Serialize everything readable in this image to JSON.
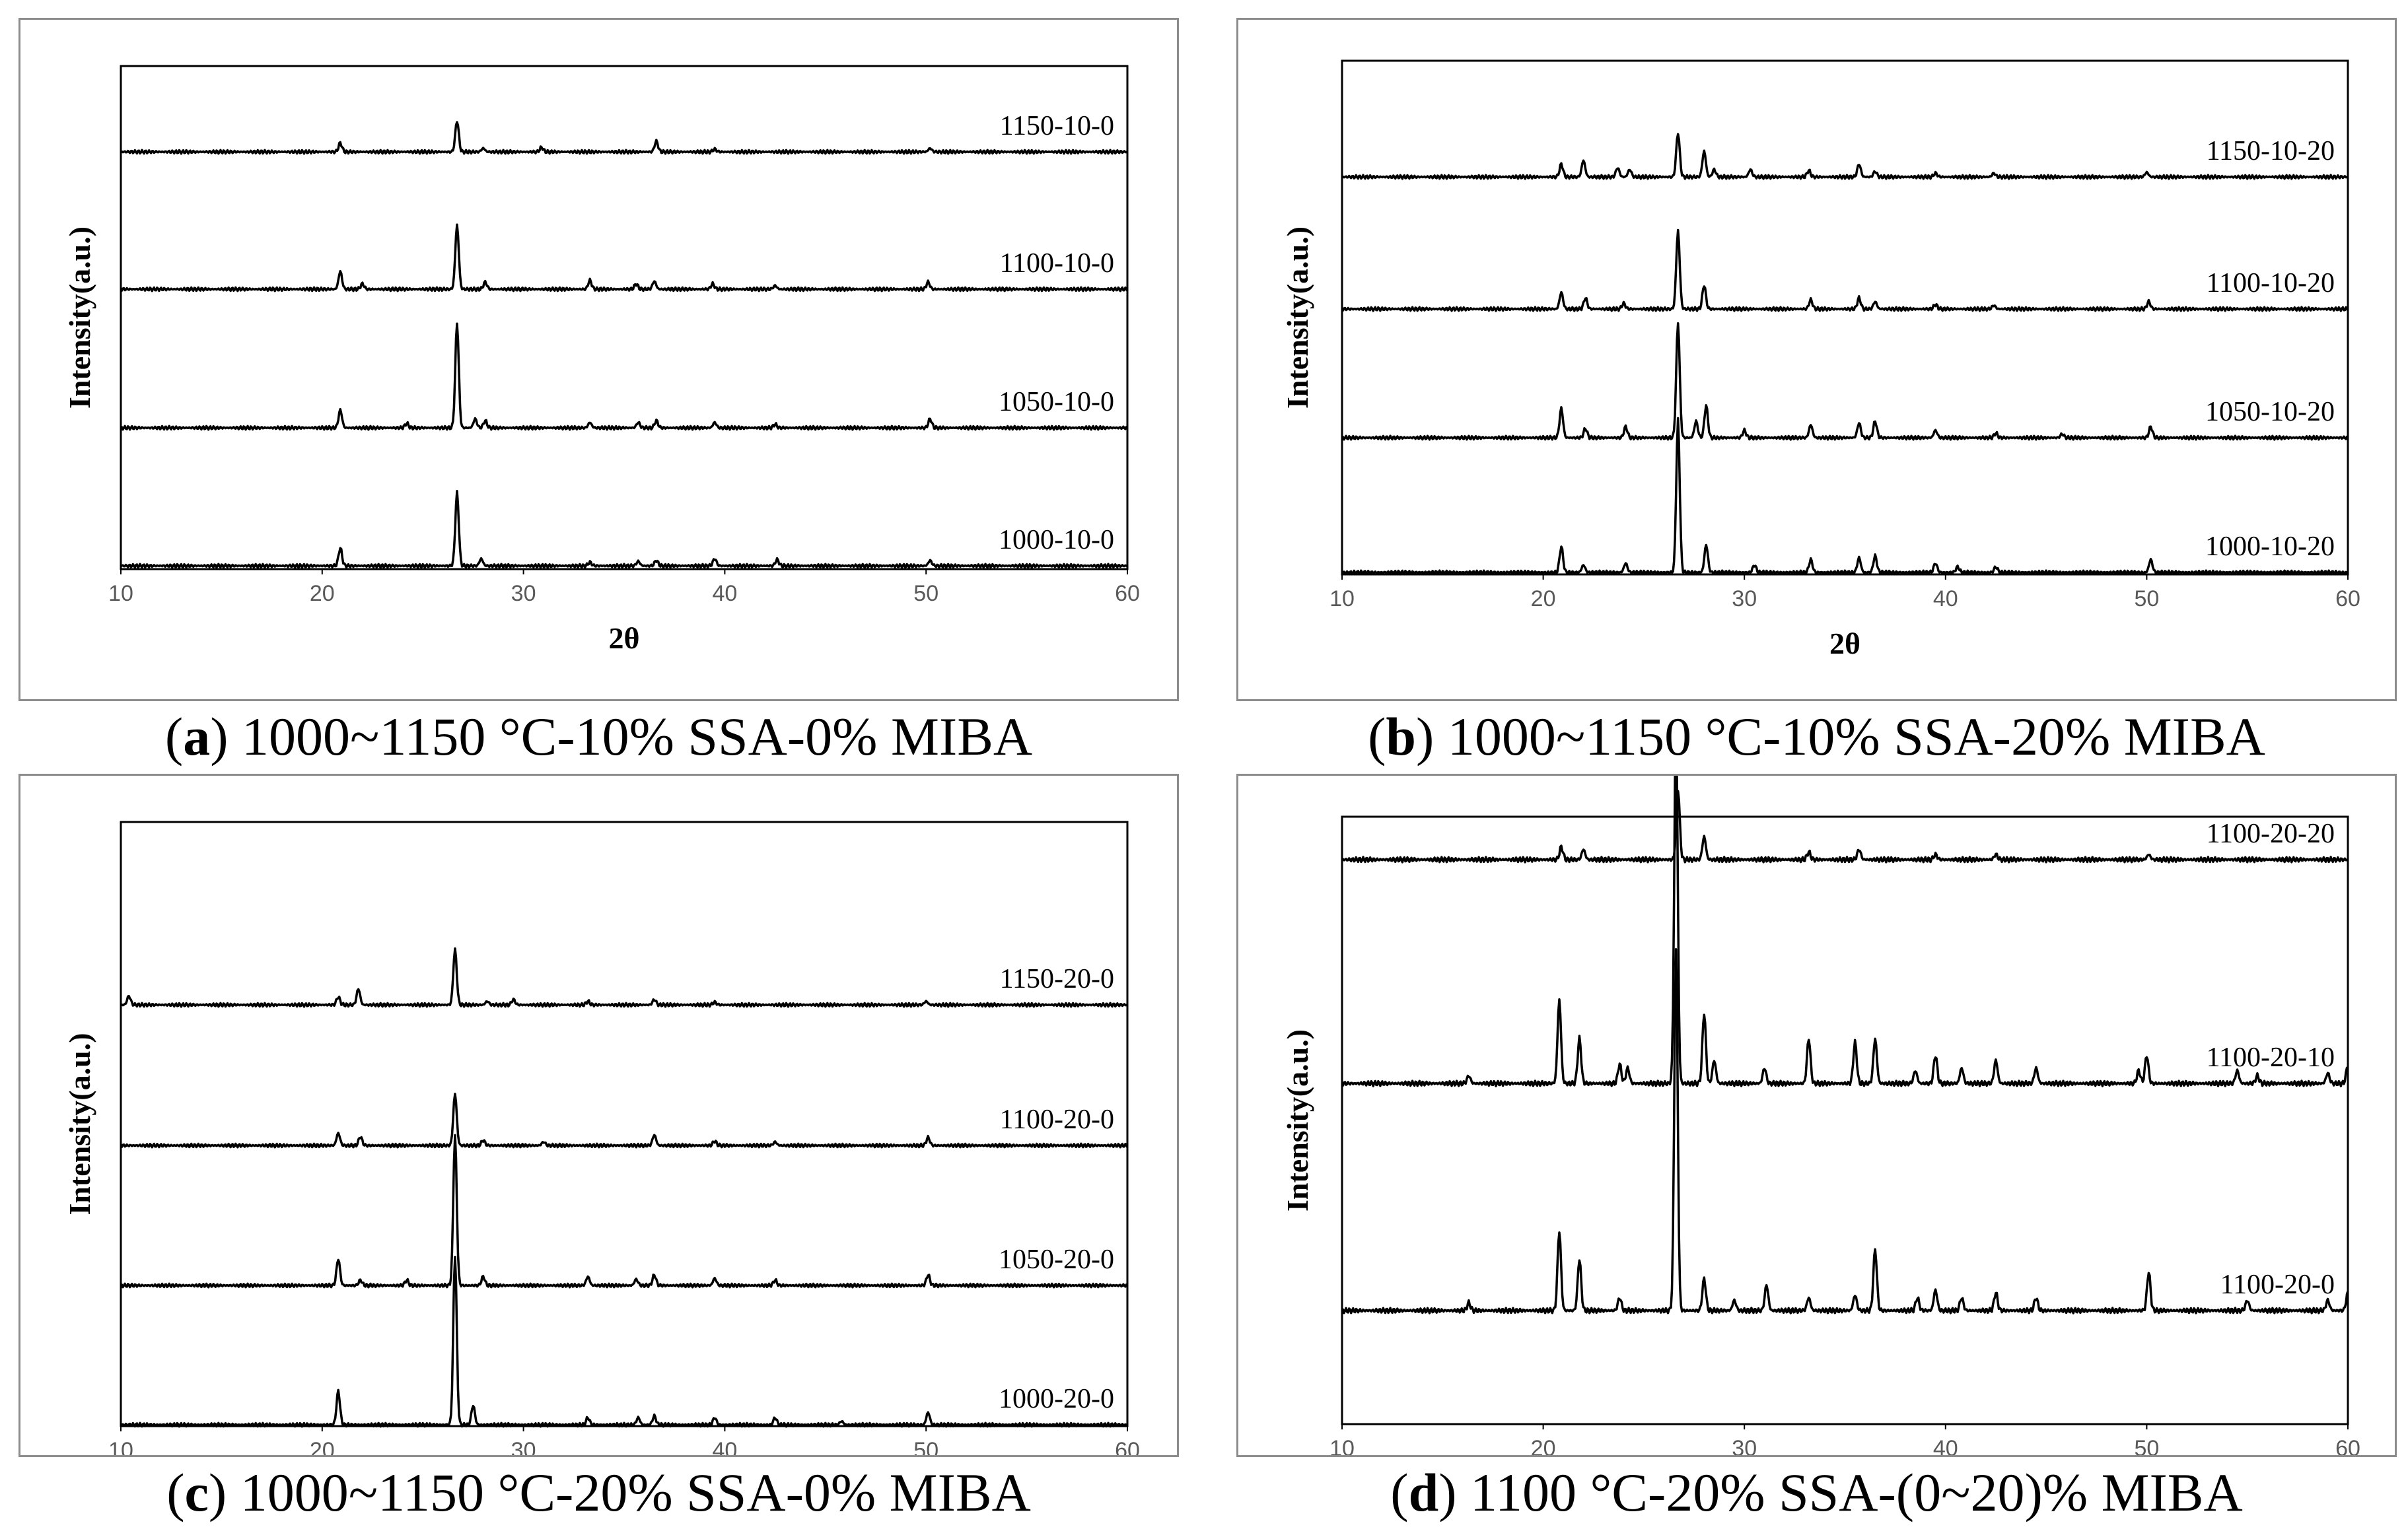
{
  "chart_data": [
    {
      "type": "line",
      "panel_letter": "a",
      "caption_rest": " 1000~1150 °C-10% SSA-0% MIBA",
      "xlabel": "2θ",
      "ylabel": "Intensity(a.u.)",
      "xlim": [
        10,
        60
      ],
      "xticks": [
        10,
        20,
        30,
        40,
        50,
        60
      ],
      "series": [
        {
          "name": "1150-10-0",
          "peaks": [
            [
              20.9,
              10
            ],
            [
              26.7,
              35
            ],
            [
              28.0,
              4
            ],
            [
              30.9,
              5
            ],
            [
              36.6,
              12
            ],
            [
              39.5,
              3
            ],
            [
              50.2,
              4
            ]
          ]
        },
        {
          "name": "1100-10-0",
          "peaks": [
            [
              20.9,
              20
            ],
            [
              22.0,
              6
            ],
            [
              26.7,
              72
            ],
            [
              28.1,
              8
            ],
            [
              33.3,
              10
            ],
            [
              35.6,
              6
            ],
            [
              36.5,
              9
            ],
            [
              39.4,
              6
            ],
            [
              42.5,
              4
            ],
            [
              50.1,
              8
            ]
          ]
        },
        {
          "name": "1050-10-0",
          "peaks": [
            [
              20.9,
              20
            ],
            [
              24.2,
              5
            ],
            [
              26.7,
              118
            ],
            [
              27.6,
              10
            ],
            [
              28.1,
              8
            ],
            [
              33.3,
              6
            ],
            [
              35.7,
              6
            ],
            [
              36.6,
              8
            ],
            [
              39.5,
              6
            ],
            [
              42.5,
              4
            ],
            [
              50.2,
              10
            ]
          ]
        },
        {
          "name": "1000-10-0",
          "peaks": [
            [
              20.9,
              20
            ],
            [
              26.7,
              82
            ],
            [
              27.9,
              8
            ],
            [
              33.3,
              4
            ],
            [
              35.7,
              5
            ],
            [
              36.6,
              6
            ],
            [
              39.5,
              8
            ],
            [
              42.6,
              7
            ],
            [
              50.2,
              6
            ]
          ]
        }
      ]
    },
    {
      "type": "line",
      "panel_letter": "b",
      "caption_rest": " 1000~1150 °C-10% SSA-20% MIBA",
      "xlabel": "2θ",
      "ylabel": "Intensity(a.u.)",
      "xlim": [
        10,
        60
      ],
      "xticks": [
        10,
        20,
        30,
        40,
        50,
        60
      ],
      "series": [
        {
          "name": "1150-10-20",
          "peaks": [
            [
              20.9,
              14
            ],
            [
              22.0,
              18
            ],
            [
              23.7,
              10
            ],
            [
              24.3,
              8
            ],
            [
              26.7,
              48
            ],
            [
              28.0,
              28
            ],
            [
              28.5,
              8
            ],
            [
              30.3,
              8
            ],
            [
              33.2,
              7
            ],
            [
              35.7,
              14
            ],
            [
              36.5,
              6
            ],
            [
              39.5,
              4
            ],
            [
              42.4,
              4
            ],
            [
              50.0,
              5
            ]
          ]
        },
        {
          "name": "1100-10-20",
          "peaks": [
            [
              20.9,
              18
            ],
            [
              22.1,
              12
            ],
            [
              24.0,
              6
            ],
            [
              26.7,
              85
            ],
            [
              28.0,
              26
            ],
            [
              33.3,
              10
            ],
            [
              35.7,
              12
            ],
            [
              36.5,
              8
            ],
            [
              39.5,
              5
            ],
            [
              42.4,
              4
            ],
            [
              50.1,
              8
            ]
          ]
        },
        {
          "name": "1050-10-20",
          "peaks": [
            [
              20.9,
              32
            ],
            [
              22.1,
              10
            ],
            [
              24.1,
              12
            ],
            [
              26.7,
              125
            ],
            [
              27.6,
              18
            ],
            [
              28.1,
              35
            ],
            [
              30.0,
              8
            ],
            [
              33.3,
              14
            ],
            [
              35.7,
              16
            ],
            [
              36.5,
              18
            ],
            [
              39.5,
              8
            ],
            [
              42.5,
              5
            ],
            [
              45.8,
              4
            ],
            [
              50.2,
              12
            ]
          ]
        },
        {
          "name": "1000-10-20",
          "peaks": [
            [
              20.9,
              28
            ],
            [
              22.0,
              8
            ],
            [
              24.1,
              10
            ],
            [
              26.7,
              165
            ],
            [
              28.1,
              30
            ],
            [
              30.5,
              8
            ],
            [
              33.3,
              14
            ],
            [
              35.7,
              16
            ],
            [
              36.5,
              18
            ],
            [
              39.5,
              10
            ],
            [
              40.6,
              6
            ],
            [
              42.5,
              6
            ],
            [
              50.2,
              14
            ]
          ]
        }
      ]
    },
    {
      "type": "line",
      "panel_letter": "c",
      "caption_rest": " 1000~1150 °C-20% SSA-0% MIBA",
      "xlabel": "2θ",
      "ylabel": "Intensity(a.u.)",
      "xlim": [
        10,
        60
      ],
      "xticks": [
        10,
        20,
        30,
        40,
        50,
        60
      ],
      "series": [
        {
          "name": "1150-20-0",
          "peaks": [
            [
              10.4,
              10
            ],
            [
              20.8,
              9
            ],
            [
              21.8,
              18
            ],
            [
              26.6,
              62
            ],
            [
              28.2,
              4
            ],
            [
              29.5,
              6
            ],
            [
              33.2,
              4
            ],
            [
              36.5,
              6
            ],
            [
              39.5,
              3
            ],
            [
              50.0,
              4
            ]
          ]
        },
        {
          "name": "1100-20-0",
          "peaks": [
            [
              20.8,
              14
            ],
            [
              21.9,
              10
            ],
            [
              26.6,
              58
            ],
            [
              28.0,
              6
            ],
            [
              31.0,
              4
            ],
            [
              36.5,
              12
            ],
            [
              39.5,
              5
            ],
            [
              42.5,
              4
            ],
            [
              50.1,
              9
            ]
          ]
        },
        {
          "name": "1050-20-0",
          "peaks": [
            [
              20.8,
              30
            ],
            [
              21.9,
              6
            ],
            [
              24.2,
              6
            ],
            [
              26.6,
              168
            ],
            [
              28.0,
              10
            ],
            [
              33.2,
              10
            ],
            [
              35.6,
              7
            ],
            [
              36.5,
              12
            ],
            [
              39.5,
              8
            ],
            [
              42.5,
              6
            ],
            [
              50.1,
              12
            ]
          ]
        },
        {
          "name": "1000-20-0",
          "peaks": [
            [
              20.8,
              38
            ],
            [
              26.6,
              190
            ],
            [
              27.5,
              22
            ],
            [
              33.2,
              8
            ],
            [
              35.7,
              8
            ],
            [
              36.5,
              10
            ],
            [
              39.5,
              8
            ],
            [
              42.5,
              8
            ],
            [
              45.8,
              4
            ],
            [
              50.1,
              14
            ]
          ]
        }
      ]
    },
    {
      "type": "line",
      "panel_letter": "d",
      "caption_rest": " 1100 °C-20% SSA-(0~20)% MIBA",
      "xlabel": "2θ",
      "ylabel": "Intensity(a.u.)",
      "xlim": [
        10,
        60
      ],
      "xticks": [
        10,
        20,
        30,
        40,
        50,
        60
      ],
      "series": [
        {
          "name": "1100-20-20",
          "peaks": [
            [
              20.9,
              10
            ],
            [
              22.0,
              8
            ],
            [
              26.7,
              55
            ],
            [
              28.0,
              18
            ],
            [
              33.2,
              6
            ],
            [
              35.7,
              8
            ],
            [
              39.5,
              4
            ],
            [
              42.5,
              4
            ],
            [
              50.1,
              4
            ]
          ]
        },
        {
          "name": "1100-20-10",
          "peaks": [
            [
              16.3,
              6
            ],
            [
              20.8,
              65
            ],
            [
              21.8,
              35
            ],
            [
              23.8,
              15
            ],
            [
              24.2,
              12
            ],
            [
              26.6,
              280
            ],
            [
              28.0,
              55
            ],
            [
              28.5,
              18
            ],
            [
              31.0,
              12
            ],
            [
              33.2,
              35
            ],
            [
              35.5,
              32
            ],
            [
              36.5,
              35
            ],
            [
              38.5,
              10
            ],
            [
              39.5,
              22
            ],
            [
              40.8,
              12
            ],
            [
              42.5,
              18
            ],
            [
              44.5,
              12
            ],
            [
              50.0,
              22
            ],
            [
              49.6,
              10
            ],
            [
              54.5,
              10
            ],
            [
              55.5,
              6
            ],
            [
              59.0,
              8
            ],
            [
              60.0,
              14
            ]
          ]
        },
        {
          "name": "1100-20-0",
          "peaks": [
            [
              16.3,
              6
            ],
            [
              20.8,
              62
            ],
            [
              21.8,
              40
            ],
            [
              23.8,
              10
            ],
            [
              26.6,
              280
            ],
            [
              28.0,
              25
            ],
            [
              29.5,
              8
            ],
            [
              31.1,
              20
            ],
            [
              33.2,
              10
            ],
            [
              35.5,
              12
            ],
            [
              36.5,
              48
            ],
            [
              38.6,
              10
            ],
            [
              39.5,
              16
            ],
            [
              40.8,
              10
            ],
            [
              42.5,
              14
            ],
            [
              44.5,
              10
            ],
            [
              50.1,
              30
            ],
            [
              55.0,
              8
            ],
            [
              59.0,
              8
            ],
            [
              60.0,
              14
            ]
          ]
        }
      ]
    }
  ]
}
